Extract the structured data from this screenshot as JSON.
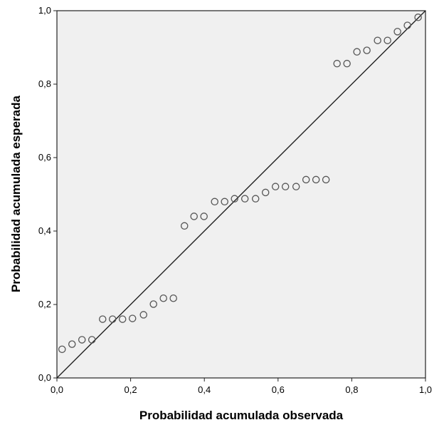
{
  "chart_data": {
    "type": "scatter",
    "title": "",
    "xlabel": "Probabilidad acumulada observada",
    "ylabel": "Probabilidad acumulada esperada",
    "xlim": [
      0,
      1
    ],
    "ylim": [
      0,
      1
    ],
    "x_ticks": [
      "0,0",
      "0,2",
      "0,4",
      "0,6",
      "0,8",
      "1,0"
    ],
    "y_ticks": [
      "0,0",
      "0,2",
      "0,4",
      "0,6",
      "0,8",
      "1,0"
    ],
    "grid": false,
    "reference_line": {
      "from": [
        0,
        0
      ],
      "to": [
        1,
        1
      ]
    },
    "colors": {
      "plot_background": "#f0f0f0",
      "marker": "#555555",
      "line": "#222222",
      "frame": "#222222"
    },
    "series": [
      {
        "points": [
          [
            0.014,
            0.078
          ],
          [
            0.041,
            0.092
          ],
          [
            0.068,
            0.104
          ],
          [
            0.095,
            0.104
          ],
          [
            0.124,
            0.16
          ],
          [
            0.151,
            0.16
          ],
          [
            0.178,
            0.16
          ],
          [
            0.205,
            0.162
          ],
          [
            0.235,
            0.172
          ],
          [
            0.262,
            0.201
          ],
          [
            0.289,
            0.217
          ],
          [
            0.316,
            0.217
          ],
          [
            0.346,
            0.414
          ],
          [
            0.372,
            0.44
          ],
          [
            0.399,
            0.44
          ],
          [
            0.428,
            0.48
          ],
          [
            0.455,
            0.48
          ],
          [
            0.482,
            0.488
          ],
          [
            0.51,
            0.488
          ],
          [
            0.539,
            0.488
          ],
          [
            0.566,
            0.505
          ],
          [
            0.593,
            0.521
          ],
          [
            0.62,
            0.521
          ],
          [
            0.649,
            0.521
          ],
          [
            0.676,
            0.54
          ],
          [
            0.703,
            0.54
          ],
          [
            0.73,
            0.54
          ],
          [
            0.76,
            0.856
          ],
          [
            0.787,
            0.856
          ],
          [
            0.814,
            0.888
          ],
          [
            0.841,
            0.892
          ],
          [
            0.87,
            0.919
          ],
          [
            0.897,
            0.919
          ],
          [
            0.924,
            0.943
          ],
          [
            0.951,
            0.96
          ],
          [
            0.98,
            0.982
          ]
        ]
      }
    ]
  }
}
